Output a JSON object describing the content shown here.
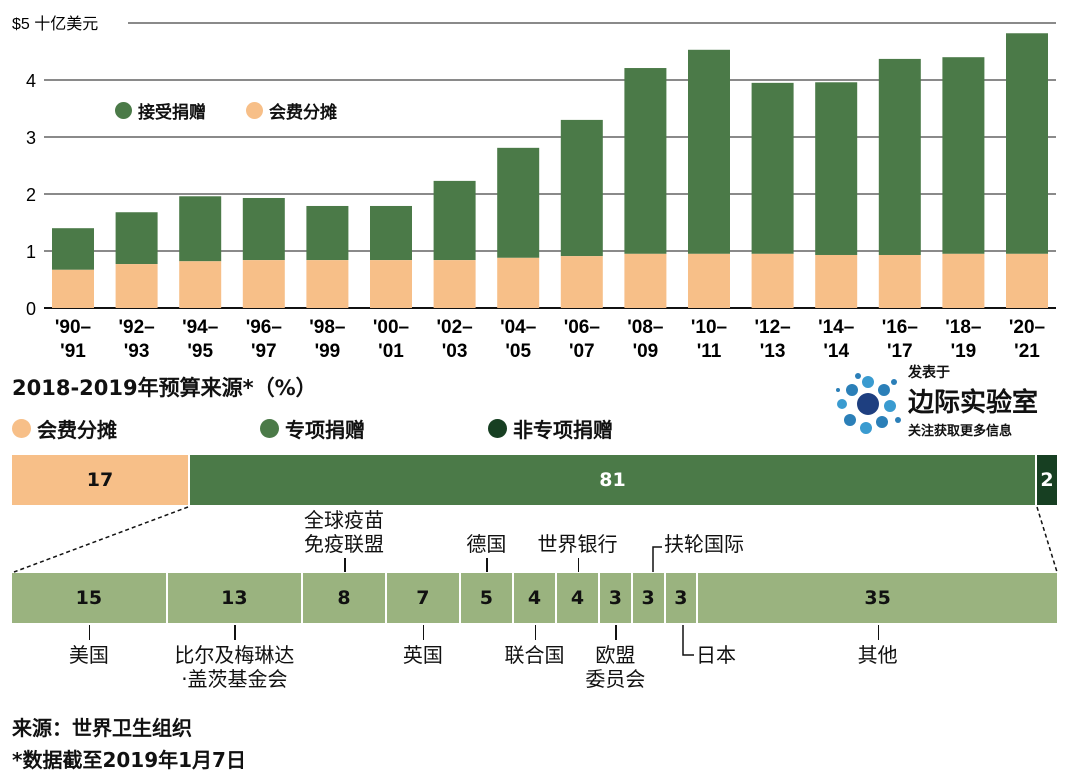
{
  "chart_data": [
    {
      "type": "bar",
      "stacked": true,
      "ylabel": "$5 十亿美元",
      "ylim": [
        0,
        5
      ],
      "yticks": [
        0,
        1,
        2,
        3,
        4
      ],
      "categories": [
        [
          "'90–",
          "'91"
        ],
        [
          "'92–",
          "'93"
        ],
        [
          "'94–",
          "'95"
        ],
        [
          "'96–",
          "'97"
        ],
        [
          "'98–",
          "'99"
        ],
        [
          "'00–",
          "'01"
        ],
        [
          "'02–",
          "'03"
        ],
        [
          "'04–",
          "'05"
        ],
        [
          "'06–",
          "'07"
        ],
        [
          "'08–",
          "'09"
        ],
        [
          "'10–",
          "'11"
        ],
        [
          "'12–",
          "'13"
        ],
        [
          "'14–",
          "'14"
        ],
        [
          "'16–",
          "'17"
        ],
        [
          "'18–",
          "'19"
        ],
        [
          "'20–",
          "'21"
        ]
      ],
      "series": [
        {
          "name": "会费分摊",
          "color": "#f7bf88",
          "values": [
            0.67,
            0.77,
            0.82,
            0.84,
            0.84,
            0.84,
            0.84,
            0.88,
            0.91,
            0.95,
            0.95,
            0.95,
            0.93,
            0.93,
            0.95,
            0.95
          ]
        },
        {
          "name": "接受捐赠",
          "color": "#4b7a48",
          "totals": [
            1.4,
            1.68,
            1.96,
            1.93,
            1.79,
            1.79,
            2.23,
            2.81,
            3.3,
            4.21,
            4.53,
            3.95,
            3.96,
            4.37,
            4.4,
            4.82
          ]
        }
      ],
      "legend": "top-left"
    },
    {
      "type": "bar",
      "title": "2018-2019年预算来源*（%）",
      "segments": [
        {
          "name": "会费分摊",
          "value": 17,
          "color": "#f7bf88"
        },
        {
          "name": "专项捐赠",
          "value": 81,
          "color": "#4b7a48"
        },
        {
          "name": "非专项捐赠",
          "value": 2,
          "color": "#173f22"
        }
      ]
    },
    {
      "type": "bar",
      "segments": [
        {
          "name": "美国",
          "value": 15
        },
        {
          "name": "比尔及梅琳达·盖茨基金会",
          "value": 13
        },
        {
          "name": "全球疫苗免疫联盟",
          "value": 8
        },
        {
          "name": "英国",
          "value": 7
        },
        {
          "name": "德国",
          "value": 5
        },
        {
          "name": "联合国",
          "value": 4
        },
        {
          "name": "世界银行",
          "value": 4
        },
        {
          "name": "欧盟委员会",
          "value": 3
        },
        {
          "name": "扶轮国际",
          "value": 3
        },
        {
          "name": "日本",
          "value": 3
        },
        {
          "name": "其他",
          "value": 35
        }
      ],
      "color": "#9ab37f"
    }
  ],
  "publisher": {
    "line1": "发表于",
    "name": "边际实验室",
    "line3": "关注获取更多信息"
  },
  "source": "来源：世界卫生组织",
  "note": "*数据截至2019年1月7日"
}
